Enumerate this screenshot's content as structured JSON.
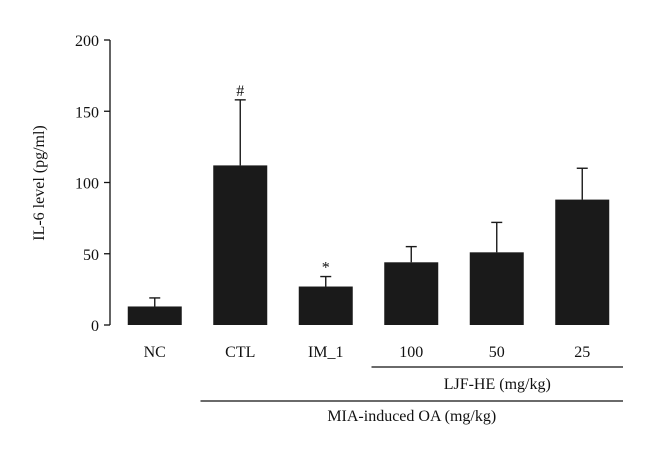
{
  "chart_data": {
    "type": "bar",
    "ylabel": "IL-6 level (pg/ml)",
    "xlabel": "",
    "ylim": [
      0,
      200
    ],
    "yticks": [
      0,
      50,
      100,
      150,
      200
    ],
    "grid": false,
    "bar_color": "#1a1a1a",
    "categories": [
      "NC",
      "CTL",
      "IM_1",
      "100",
      "50",
      "25"
    ],
    "values": [
      13,
      112,
      27,
      44,
      51,
      88
    ],
    "errors": [
      6,
      46,
      7,
      11,
      21,
      22
    ],
    "annotations": [
      "",
      "#",
      "*",
      "",
      "",
      ""
    ],
    "group_labels": [
      {
        "label": "LJF-HE (mg/kg)",
        "from": 3,
        "to": 5
      },
      {
        "label": "MIA-induced OA (mg/kg)",
        "from": 1,
        "to": 5
      }
    ]
  }
}
